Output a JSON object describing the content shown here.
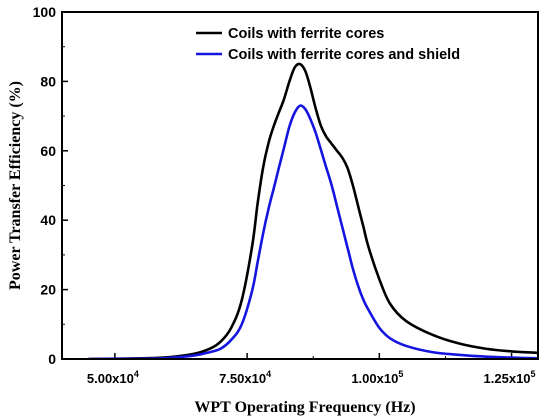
{
  "chart_data": {
    "type": "line",
    "xlabel": "WPT Operating Frequency (Hz)",
    "ylabel": "Power Transfer Efficiency (%)",
    "xlim": [
      40000,
      130000
    ],
    "ylim": [
      0,
      100
    ],
    "y_ticks": [
      0,
      20,
      40,
      60,
      80,
      100
    ],
    "x_ticks": [
      {
        "value": 50000,
        "mantissa": "5.00x10",
        "exponent": "4"
      },
      {
        "value": 75000,
        "mantissa": "7.50x10",
        "exponent": "4"
      },
      {
        "value": 100000,
        "mantissa": "1.00x10",
        "exponent": "5"
      },
      {
        "value": 125000,
        "mantissa": "1.25x10",
        "exponent": "5"
      }
    ],
    "legend_position": "top-right",
    "grid": false,
    "series": [
      {
        "name": "Coils with ferrite cores",
        "color": "#000000",
        "x": [
          45000,
          55000,
          60000,
          65000,
          68000,
          70000,
          72000,
          74000,
          76000,
          77000,
          78000,
          79000,
          80000,
          81000,
          82000,
          83000,
          84000,
          85000,
          86000,
          87000,
          88000,
          89000,
          90000,
          91000,
          92000,
          93000,
          94000,
          95000,
          96000,
          97000,
          98000,
          100000,
          102000,
          105000,
          110000,
          115000,
          120000,
          125000,
          130000
        ],
        "y": [
          0,
          0.2,
          0.5,
          1.5,
          3,
          5,
          9,
          17,
          33,
          45,
          55,
          62,
          67,
          71,
          75,
          80,
          84,
          85,
          83,
          78,
          72,
          67,
          64,
          62,
          60,
          58,
          55,
          50,
          44,
          38,
          32,
          23,
          16,
          11,
          7,
          4.5,
          3,
          2.2,
          1.8
        ]
      },
      {
        "name": "Coils with ferrite cores and shield",
        "color": "#1515e0",
        "x": [
          45000,
          55000,
          60000,
          65000,
          68000,
          70000,
          72000,
          74000,
          76000,
          77000,
          78000,
          79000,
          80000,
          81000,
          82000,
          83000,
          84000,
          85000,
          86000,
          87000,
          88000,
          89000,
          90000,
          91000,
          92000,
          93000,
          94000,
          95000,
          96000,
          97000,
          98000,
          100000,
          102000,
          105000,
          110000,
          115000,
          120000,
          125000,
          130000
        ],
        "y": [
          0,
          0.1,
          0.3,
          1,
          2,
          3,
          5.5,
          10,
          20,
          28,
          36,
          43,
          49,
          55,
          61,
          67,
          71,
          73,
          72,
          69,
          65,
          60,
          55,
          50,
          44,
          38,
          32,
          26,
          21,
          17,
          14,
          9,
          6,
          3.8,
          2,
          1.2,
          0.7,
          0.4,
          0.2
        ]
      }
    ]
  }
}
